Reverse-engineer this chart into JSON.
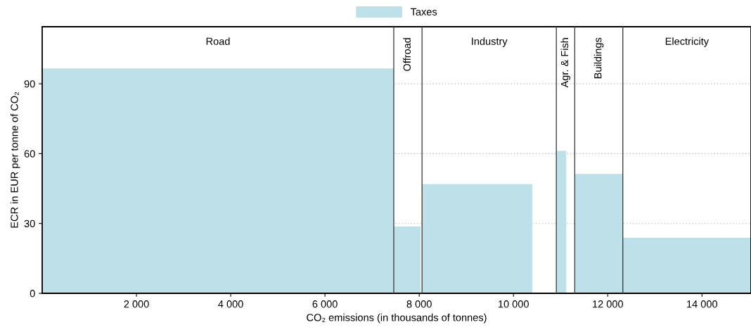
{
  "chart_data": {
    "type": "histogram",
    "bins": [
      0,
      7460,
      8030,
      8060,
      10400,
      10920,
      11120,
      11300,
      12320,
      15040
    ],
    "series": [
      {
        "name": "Taxes",
        "color": "#bee0e9",
        "values": [
          96.6,
          28.7,
          null,
          46.9,
          null,
          61.2,
          null,
          51.3,
          23.9
        ]
      }
    ],
    "ref_lines": [
      {
        "axis": "x",
        "value": 7460
      },
      {
        "axis": "x",
        "value": 8060
      },
      {
        "axis": "x",
        "value": 10910
      },
      {
        "axis": "x",
        "value": 11300
      },
      {
        "axis": "x",
        "value": 12320
      }
    ],
    "annotations": [
      "Road",
      "Offroad",
      "Industry",
      "Agr. & Fish",
      "Buildings",
      "Electricity"
    ],
    "xlabel": "CO₂ emissions (in thousands of tonnes)",
    "ylabel": "ECR in EUR per tonne of CO₂",
    "xlim": [
      0,
      15040
    ],
    "ylim": [
      0,
      114.5
    ],
    "xticks": [
      {
        "value": 2000,
        "label": "2 000"
      },
      {
        "value": 4000,
        "label": "4 000"
      },
      {
        "value": 6000,
        "label": "6 000"
      },
      {
        "value": 8000,
        "label": "8 000"
      },
      {
        "value": 10000,
        "label": "10 000"
      },
      {
        "value": 12000,
        "label": "12 000"
      },
      {
        "value": 14000,
        "label": "14 000"
      }
    ],
    "yticks": [
      0,
      30,
      60,
      90
    ],
    "grid": "y",
    "legend": "top"
  }
}
